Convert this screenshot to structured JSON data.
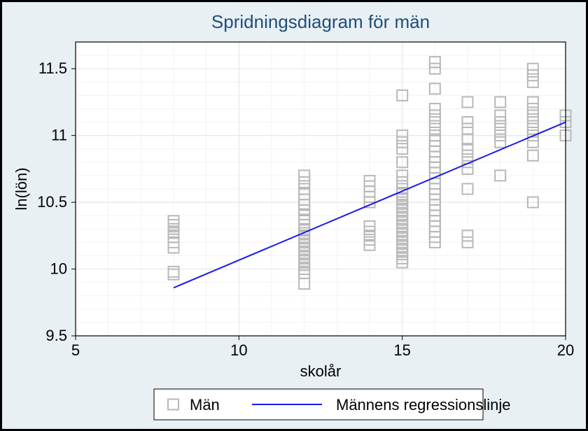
{
  "chart": {
    "type": "scatter",
    "title": "Spridningsdiagram för män",
    "title_fontsize": 26,
    "title_color": "#1f4e79",
    "xlabel": "skolår",
    "ylabel": "ln(lön)",
    "label_fontsize": 22,
    "label_color": "#000000",
    "tick_fontsize": 22,
    "tick_color": "#000000",
    "xlim": [
      5,
      20
    ],
    "ylim": [
      9.5,
      11.7
    ],
    "xticks": [
      5,
      10,
      15,
      20
    ],
    "yticks": [
      9.5,
      10,
      10.5,
      11,
      11.5
    ],
    "grid": true,
    "grid_color": "#e6e6e6",
    "minor_grid_color": "#f2f2f2",
    "x_minor_step": 1,
    "y_minor_step": 0.1,
    "outer_background": "#e8f0f4",
    "plot_background": "#ffffff",
    "outer_border_color": "#000000",
    "outer_border_width": 3,
    "plot_border_color": "#000000",
    "plot_border_width": 1.2,
    "marker": {
      "shape": "square",
      "size": 15,
      "stroke": "#b8b8b8",
      "stroke_width": 2,
      "fill": "none"
    },
    "regression_line": {
      "x1": 8,
      "y1": 9.86,
      "x2": 20,
      "y2": 11.1,
      "color": "#1a1aeb",
      "width": 2
    },
    "points": [
      {
        "x": 8,
        "y": 9.96
      },
      {
        "x": 8,
        "y": 9.98
      },
      {
        "x": 8,
        "y": 10.16
      },
      {
        "x": 8,
        "y": 10.2
      },
      {
        "x": 8,
        "y": 10.24
      },
      {
        "x": 8,
        "y": 10.27
      },
      {
        "x": 8,
        "y": 10.3
      },
      {
        "x": 8,
        "y": 10.33
      },
      {
        "x": 8,
        "y": 10.36
      },
      {
        "x": 12,
        "y": 9.89
      },
      {
        "x": 12,
        "y": 9.97
      },
      {
        "x": 12,
        "y": 10.0
      },
      {
        "x": 12,
        "y": 10.03
      },
      {
        "x": 12,
        "y": 10.06
      },
      {
        "x": 12,
        "y": 10.09
      },
      {
        "x": 12,
        "y": 10.12
      },
      {
        "x": 12,
        "y": 10.15
      },
      {
        "x": 12,
        "y": 10.18
      },
      {
        "x": 12,
        "y": 10.21
      },
      {
        "x": 12,
        "y": 10.24
      },
      {
        "x": 12,
        "y": 10.27
      },
      {
        "x": 12,
        "y": 10.3
      },
      {
        "x": 12,
        "y": 10.33
      },
      {
        "x": 12,
        "y": 10.37
      },
      {
        "x": 12,
        "y": 10.41
      },
      {
        "x": 12,
        "y": 10.44
      },
      {
        "x": 12,
        "y": 10.48
      },
      {
        "x": 12,
        "y": 10.52
      },
      {
        "x": 12,
        "y": 10.56
      },
      {
        "x": 12,
        "y": 10.6
      },
      {
        "x": 12,
        "y": 10.65
      },
      {
        "x": 12,
        "y": 10.7
      },
      {
        "x": 14,
        "y": 10.18
      },
      {
        "x": 14,
        "y": 10.22
      },
      {
        "x": 14,
        "y": 10.25
      },
      {
        "x": 14,
        "y": 10.28
      },
      {
        "x": 14,
        "y": 10.32
      },
      {
        "x": 14,
        "y": 10.5
      },
      {
        "x": 14,
        "y": 10.54
      },
      {
        "x": 14,
        "y": 10.58
      },
      {
        "x": 14,
        "y": 10.62
      },
      {
        "x": 14,
        "y": 10.66
      },
      {
        "x": 15,
        "y": 10.05
      },
      {
        "x": 15,
        "y": 10.08
      },
      {
        "x": 15,
        "y": 10.11
      },
      {
        "x": 15,
        "y": 10.14
      },
      {
        "x": 15,
        "y": 10.17
      },
      {
        "x": 15,
        "y": 10.2
      },
      {
        "x": 15,
        "y": 10.23
      },
      {
        "x": 15,
        "y": 10.26
      },
      {
        "x": 15,
        "y": 10.29
      },
      {
        "x": 15,
        "y": 10.32
      },
      {
        "x": 15,
        "y": 10.35
      },
      {
        "x": 15,
        "y": 10.38
      },
      {
        "x": 15,
        "y": 10.41
      },
      {
        "x": 15,
        "y": 10.44
      },
      {
        "x": 15,
        "y": 10.47
      },
      {
        "x": 15,
        "y": 10.5
      },
      {
        "x": 15,
        "y": 10.53
      },
      {
        "x": 15,
        "y": 10.56
      },
      {
        "x": 15,
        "y": 10.6
      },
      {
        "x": 15,
        "y": 10.65
      },
      {
        "x": 15,
        "y": 10.7
      },
      {
        "x": 15,
        "y": 10.8
      },
      {
        "x": 15,
        "y": 10.9
      },
      {
        "x": 15,
        "y": 10.95
      },
      {
        "x": 15,
        "y": 11.0
      },
      {
        "x": 15,
        "y": 11.3
      },
      {
        "x": 16,
        "y": 10.2
      },
      {
        "x": 16,
        "y": 10.24
      },
      {
        "x": 16,
        "y": 10.28
      },
      {
        "x": 16,
        "y": 10.32
      },
      {
        "x": 16,
        "y": 10.36
      },
      {
        "x": 16,
        "y": 10.4
      },
      {
        "x": 16,
        "y": 10.44
      },
      {
        "x": 16,
        "y": 10.48
      },
      {
        "x": 16,
        "y": 10.52
      },
      {
        "x": 16,
        "y": 10.56
      },
      {
        "x": 16,
        "y": 10.6
      },
      {
        "x": 16,
        "y": 10.64
      },
      {
        "x": 16,
        "y": 10.68
      },
      {
        "x": 16,
        "y": 10.72
      },
      {
        "x": 16,
        "y": 10.76
      },
      {
        "x": 16,
        "y": 10.8
      },
      {
        "x": 16,
        "y": 10.84
      },
      {
        "x": 16,
        "y": 10.88
      },
      {
        "x": 16,
        "y": 10.92
      },
      {
        "x": 16,
        "y": 10.96
      },
      {
        "x": 16,
        "y": 11.0
      },
      {
        "x": 16,
        "y": 11.05
      },
      {
        "x": 16,
        "y": 11.1
      },
      {
        "x": 16,
        "y": 11.15
      },
      {
        "x": 16,
        "y": 11.2
      },
      {
        "x": 16,
        "y": 11.35
      },
      {
        "x": 16,
        "y": 11.5
      },
      {
        "x": 16,
        "y": 11.55
      },
      {
        "x": 17,
        "y": 10.2
      },
      {
        "x": 17,
        "y": 10.25
      },
      {
        "x": 17,
        "y": 10.6
      },
      {
        "x": 17,
        "y": 10.75
      },
      {
        "x": 17,
        "y": 10.8
      },
      {
        "x": 17,
        "y": 10.85
      },
      {
        "x": 17,
        "y": 10.9
      },
      {
        "x": 17,
        "y": 10.97
      },
      {
        "x": 17,
        "y": 11.05
      },
      {
        "x": 17,
        "y": 11.1
      },
      {
        "x": 17,
        "y": 11.25
      },
      {
        "x": 18,
        "y": 10.7
      },
      {
        "x": 18,
        "y": 10.95
      },
      {
        "x": 18,
        "y": 11.0
      },
      {
        "x": 18,
        "y": 11.05
      },
      {
        "x": 18,
        "y": 11.1
      },
      {
        "x": 18,
        "y": 11.15
      },
      {
        "x": 18,
        "y": 11.25
      },
      {
        "x": 19,
        "y": 10.5
      },
      {
        "x": 19,
        "y": 10.85
      },
      {
        "x": 19,
        "y": 10.95
      },
      {
        "x": 19,
        "y": 11.0
      },
      {
        "x": 19,
        "y": 11.05
      },
      {
        "x": 19,
        "y": 11.1
      },
      {
        "x": 19,
        "y": 11.15
      },
      {
        "x": 19,
        "y": 11.2
      },
      {
        "x": 19,
        "y": 11.25
      },
      {
        "x": 19,
        "y": 11.4
      },
      {
        "x": 19,
        "y": 11.45
      },
      {
        "x": 19,
        "y": 11.5
      },
      {
        "x": 20,
        "y": 11.0
      },
      {
        "x": 20,
        "y": 11.1
      },
      {
        "x": 20,
        "y": 11.15
      }
    ],
    "legend": {
      "border_color": "#000000",
      "border_width": 1,
      "background": "#ffffff",
      "items": [
        {
          "type": "marker",
          "label": "Män"
        },
        {
          "type": "line",
          "label": "Männens regressionslinje"
        }
      ]
    }
  }
}
